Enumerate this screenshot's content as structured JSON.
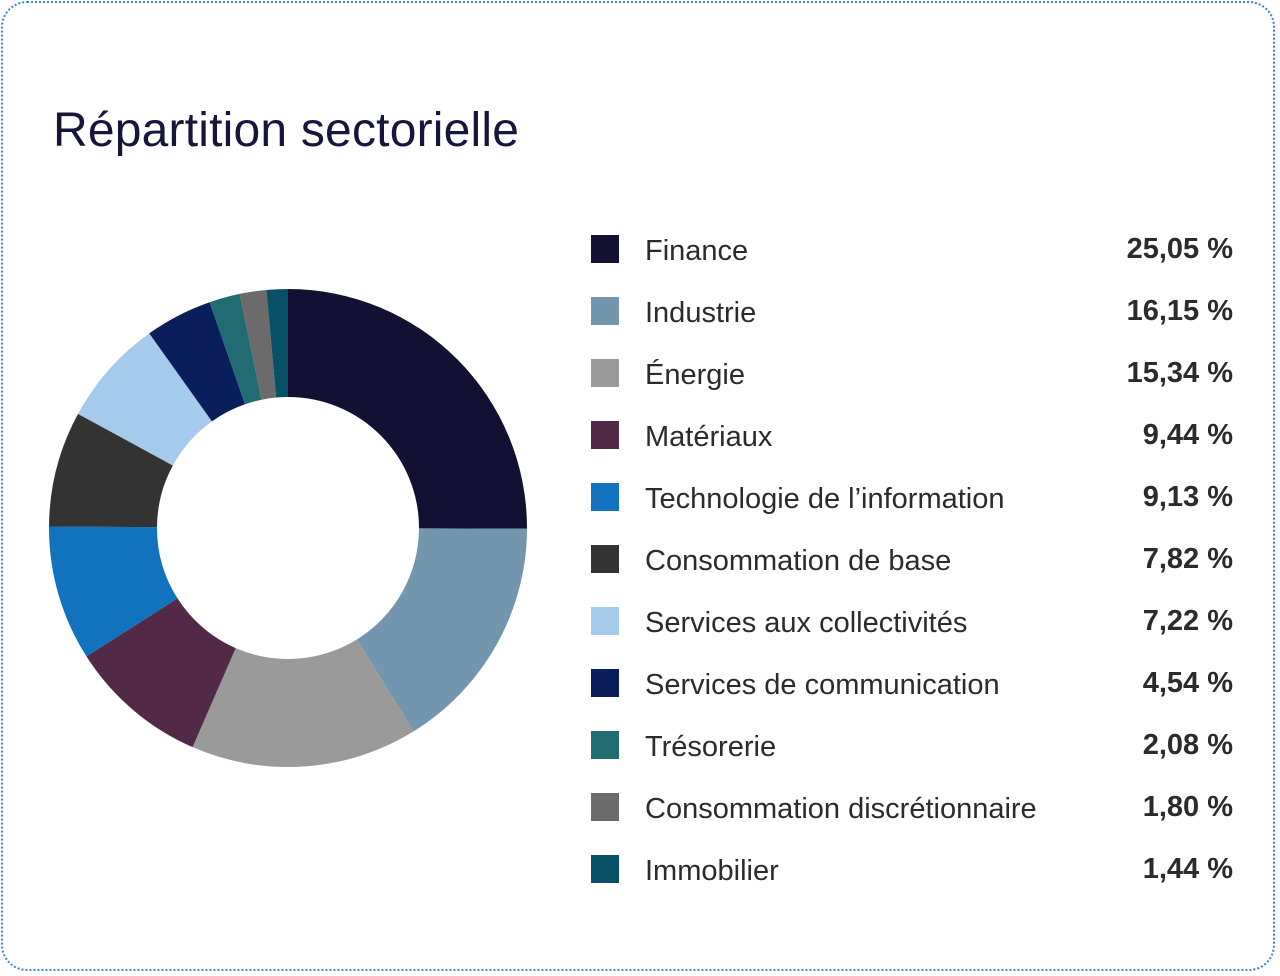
{
  "chart_data": {
    "type": "pie",
    "title": "Répartition sectorielle",
    "categories": [
      "Finance",
      "Industrie",
      "Énergie",
      "Matériaux",
      "Technologie de l’information",
      "Consommation de base",
      "Services aux collectivités",
      "Services de communication",
      "Trésorerie",
      "Consommation discrétionnaire",
      "Immobilier"
    ],
    "values": [
      25.05,
      16.15,
      15.34,
      9.44,
      9.13,
      7.82,
      7.22,
      4.54,
      2.08,
      1.8,
      1.44
    ],
    "value_labels": [
      "25,05 %",
      "16,15 %",
      "15,34 %",
      "9,44 %",
      "9,13 %",
      "7,82 %",
      "7,22 %",
      "4,54 %",
      "2,08 %",
      "1,80 %",
      "1,44 %"
    ],
    "colors": [
      "#121133",
      "#7296ad",
      "#9a9a9a",
      "#522a48",
      "#1173bd",
      "#333333",
      "#a5cbec",
      "#0a1e5b",
      "#216b72",
      "#6b6b6b",
      "#075065"
    ],
    "donut": true,
    "start": "top, clockwise",
    "legend": "right"
  }
}
